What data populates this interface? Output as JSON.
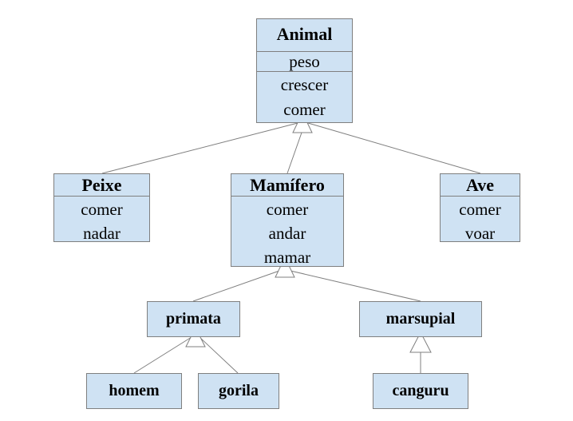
{
  "classes": {
    "animal": {
      "name": "Animal",
      "attr": "peso",
      "methods": [
        "crescer",
        "comer"
      ]
    },
    "peixe": {
      "name": "Peixe",
      "methods": [
        "comer",
        "nadar"
      ]
    },
    "mamifero": {
      "name": "Mamífero",
      "methods": [
        "comer",
        "andar",
        "mamar"
      ]
    },
    "ave": {
      "name": "Ave",
      "methods": [
        "comer",
        "voar"
      ]
    },
    "primata": {
      "name": "primata"
    },
    "marsupial": {
      "name": "marsupial"
    },
    "homem": {
      "name": "homem"
    },
    "gorila": {
      "name": "gorila"
    },
    "canguru": {
      "name": "canguru"
    }
  },
  "colors": {
    "box_fill": "#cfe2f3",
    "border": "#7f7f7f"
  }
}
